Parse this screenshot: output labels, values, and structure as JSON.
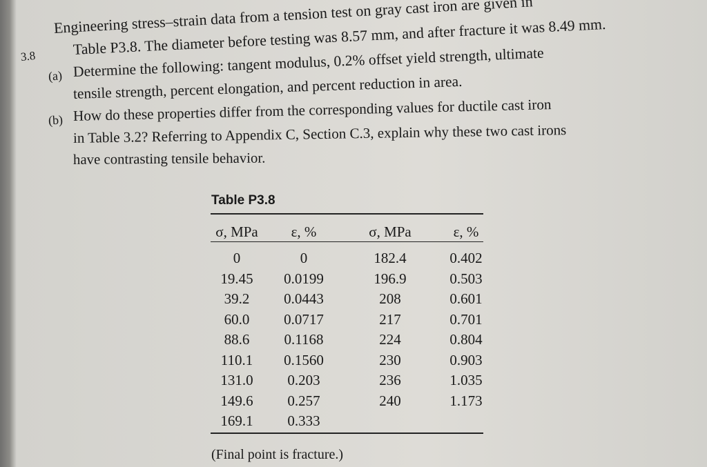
{
  "problem": {
    "number": "3.8",
    "lines": [
      "Engineering stress–strain data from a tension test on gray cast iron are given in",
      "Table P3.8. The diameter before testing was 8.57 mm, and after fracture it was 8.49 mm."
    ],
    "parts": [
      {
        "label": "(a)",
        "lines": [
          "Determine the following: tangent modulus, 0.2% offset yield strength, ultimate",
          "tensile strength, percent elongation, and percent reduction in area."
        ]
      },
      {
        "label": "(b)",
        "lines": [
          "How do these properties differ from the corresponding values for ductile cast iron",
          "in Table 3.2? Referring to Appendix C, Section C.3, explain why these two cast irons",
          "have contrasting tensile behavior."
        ]
      }
    ]
  },
  "table": {
    "title": "Table P3.8",
    "headers": [
      "σ, MPa",
      "ε, %",
      "σ, MPa",
      "ε, %"
    ],
    "left_rows": [
      [
        "0",
        "0"
      ],
      [
        "19.45",
        "0.0199"
      ],
      [
        "39.2",
        "0.0443"
      ],
      [
        "60.0",
        "0.0717"
      ],
      [
        "88.6",
        "0.1168"
      ],
      [
        "110.1",
        "0.1560"
      ],
      [
        "131.0",
        "0.203"
      ],
      [
        "149.6",
        "0.257"
      ],
      [
        "169.1",
        "0.333"
      ]
    ],
    "right_rows": [
      [
        "182.4",
        "0.402"
      ],
      [
        "196.9",
        "0.503"
      ],
      [
        "208",
        "0.601"
      ],
      [
        "217",
        "0.701"
      ],
      [
        "224",
        "0.804"
      ],
      [
        "230",
        "0.903"
      ],
      [
        "236",
        "1.035"
      ],
      [
        "240",
        "1.173"
      ]
    ],
    "note": "(Final point is fracture.)"
  }
}
